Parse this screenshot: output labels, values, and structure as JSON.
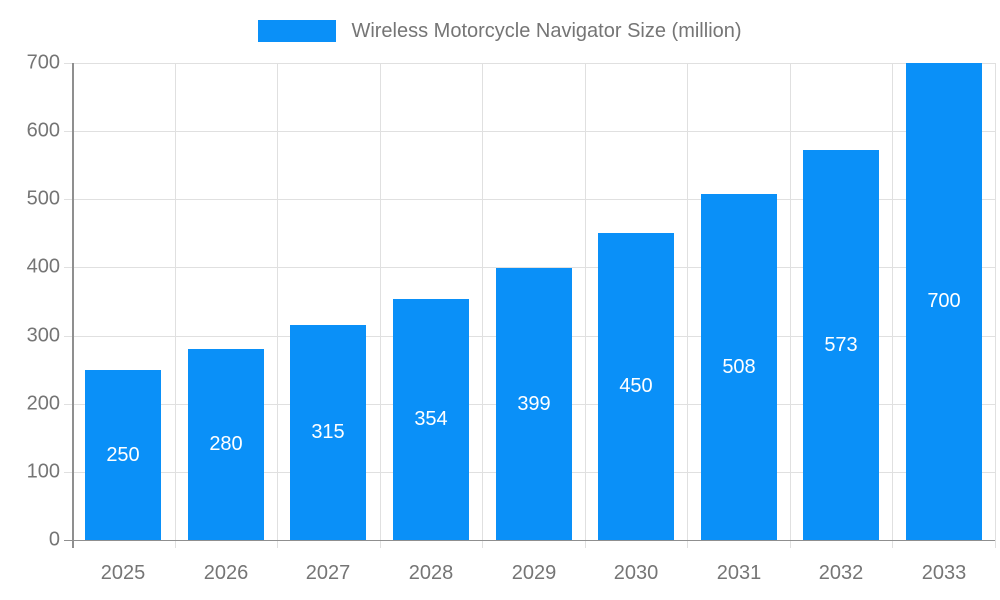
{
  "chart_data": {
    "type": "bar",
    "title": "Wireless Motorcycle Navigator Size (million)",
    "legend": {
      "position": "top",
      "entries": [
        "Wireless Motorcycle Navigator Size (million)"
      ]
    },
    "categories": [
      "2025",
      "2026",
      "2027",
      "2028",
      "2029",
      "2030",
      "2031",
      "2032",
      "2033"
    ],
    "series": [
      {
        "name": "Wireless Motorcycle Navigator Size (million)",
        "values": [
          250,
          280,
          315,
          354,
          399,
          450,
          508,
          573,
          700
        ]
      }
    ],
    "value_labels_shown": true,
    "xlabel": "",
    "ylabel": "",
    "ylim": [
      0,
      700
    ],
    "ytick_step": 100,
    "yticks": [
      0,
      100,
      200,
      300,
      400,
      500,
      600,
      700
    ],
    "grid": true,
    "colors": {
      "bar": "#0a90f8",
      "value_label": "#ffffff",
      "grid_line": "#e0e0e0",
      "axis_line": "#8f8f8f",
      "tick_label": "#757575",
      "legend_text": "#757575",
      "background": "#ffffff"
    }
  }
}
